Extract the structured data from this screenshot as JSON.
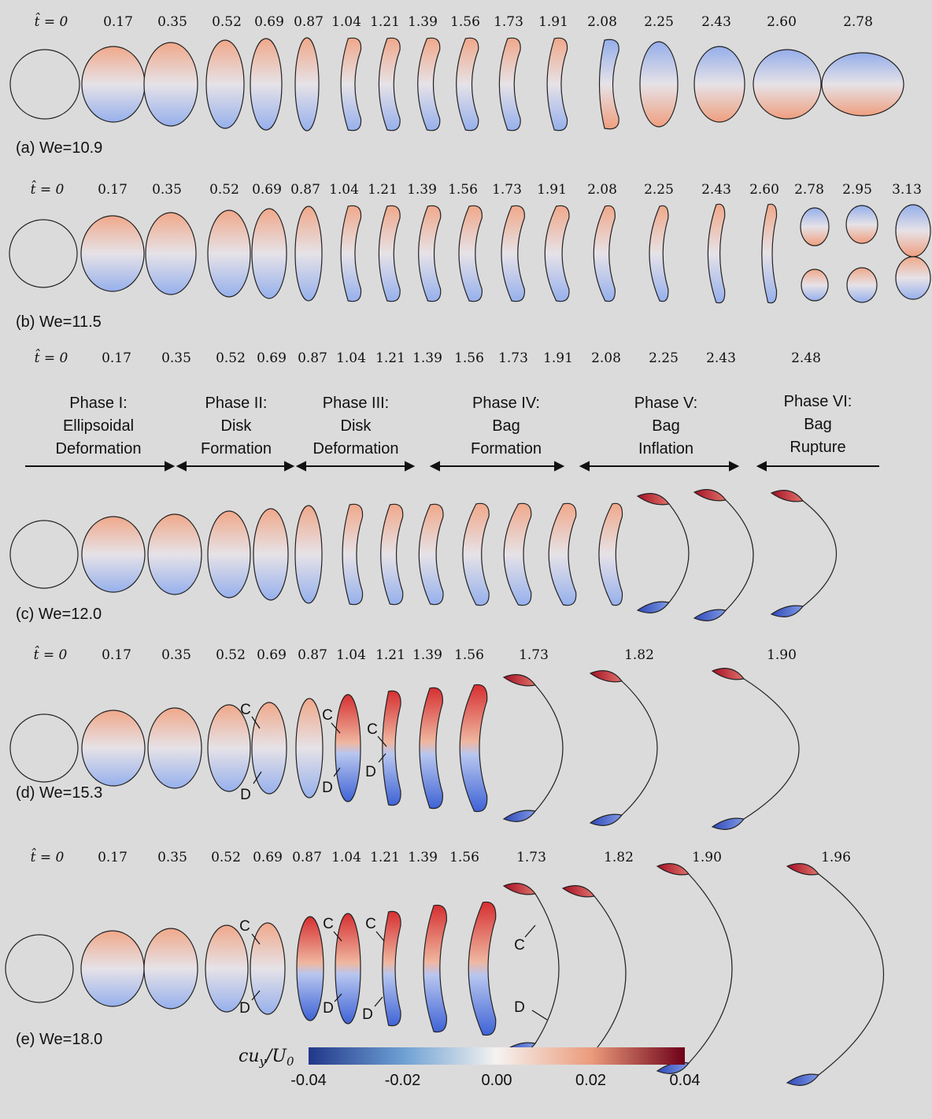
{
  "time_symbol": "t̂",
  "rows": [
    {
      "panel": "(a) We=10.9",
      "times": [
        "t̂ = 0",
        "0.17",
        "0.35",
        "0.52",
        "0.69",
        "0.87",
        "1.04",
        "1.21",
        "1.39",
        "1.56",
        "1.73",
        "1.91",
        "2.08",
        "2.25",
        "2.43",
        "2.60",
        "2.78"
      ]
    },
    {
      "panel": "(b) We=11.5",
      "times": [
        "t̂ = 0",
        "0.17",
        "0.35",
        "0.52",
        "0.69",
        "0.87",
        "1.04",
        "1.21",
        "1.39",
        "1.56",
        "1.73",
        "1.91",
        "2.08",
        "2.25",
        "2.43",
        "2.60",
        "2.78",
        "2.95",
        "3.13"
      ]
    },
    {
      "panel": "(c) We=12.0",
      "times": [
        "t̂ = 0",
        "0.17",
        "0.35",
        "0.52",
        "0.69",
        "0.87",
        "1.04",
        "1.21",
        "1.39",
        "1.56",
        "1.73",
        "1.91",
        "2.08",
        "2.25",
        "2.43",
        "2.48"
      ]
    },
    {
      "panel": "(d) We=15.3",
      "times": [
        "t̂ = 0",
        "0.17",
        "0.35",
        "0.52",
        "0.69",
        "0.87",
        "1.04",
        "1.21",
        "1.39",
        "1.56",
        "1.73",
        "1.82",
        "1.90"
      ]
    },
    {
      "panel": "(e) We=18.0",
      "times": [
        "t̂ = 0",
        "0.17",
        "0.35",
        "0.52",
        "0.69",
        "0.87",
        "1.04",
        "1.21",
        "1.39",
        "1.56",
        "1.73",
        "1.82",
        "1.90",
        "1.96"
      ]
    }
  ],
  "phases": [
    {
      "lines": [
        "Phase I:",
        "Ellipsoidal",
        "Deformation"
      ]
    },
    {
      "lines": [
        "Phase II:",
        "Disk",
        "Formation"
      ]
    },
    {
      "lines": [
        "Phase III:",
        "Disk",
        "Deformation"
      ]
    },
    {
      "lines": [
        "Phase IV:",
        "Bag",
        "Formation"
      ]
    },
    {
      "lines": [
        "Phase V:",
        "Bag",
        "Inflation"
      ]
    },
    {
      "lines": [
        "Phase VI:",
        "Bag",
        "Rupture"
      ]
    }
  ],
  "markers": {
    "c": "C",
    "d": "D"
  },
  "colorbar": {
    "title": "cu_y/U_0",
    "ticks": [
      "-0.04",
      "-0.02",
      "0.00",
      "0.02",
      "0.04"
    ],
    "min": -0.04,
    "max": 0.04,
    "colors": [
      "#2b3f8f",
      "#7aa8d8",
      "#f4f1ef",
      "#e79a78",
      "#7d0a1e"
    ]
  }
}
